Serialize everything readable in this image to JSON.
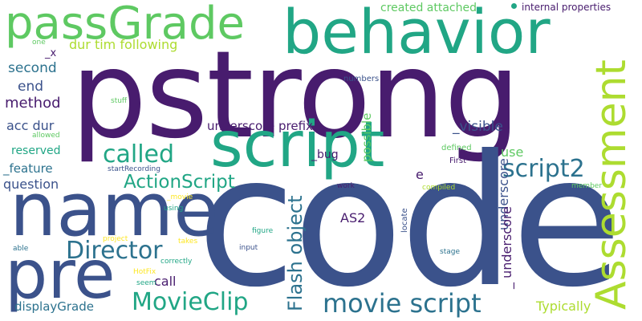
{
  "colors": {
    "darkpurple": "#481c6e",
    "blue": "#3b528b",
    "teal": "#2c728e",
    "green": "#21a685",
    "lightgreen": "#5ec962",
    "lime": "#addc30",
    "yellow": "#fde725"
  },
  "words": {
    "pstrong": "pstrong",
    "code": "code",
    "behavior": "behavior",
    "name": "name",
    "pre": "pre",
    "passGrade": "passGrade",
    "script": "script",
    "assessment": "Assessment",
    "movie_script": "movie script",
    "script2": "script2",
    "director": "Director",
    "movieclip": "MovieClip",
    "called": "called",
    "actionscript": "ActionScript",
    "flash_object": "Flash object",
    "underscore_prefix": "underscore prefix",
    "dur_tim_following": "dur tim following",
    "created_attached": "created attached",
    "internal_properties": "internal properties",
    "method": "method",
    "acc_dur": "acc dur",
    "second": "second",
    "end": "end",
    "reserved": "reserved",
    "feature": "_feature",
    "question": "question",
    "x": "_x",
    "one": "one",
    "stuff": "stuff",
    "allowed": "allowed",
    "visible": "_visible",
    "bug": "_bug",
    "possible": "possible",
    "use": "use",
    "defined": "defined",
    "first": "First",
    "e": "e",
    "numbers": "numbers",
    "startrecording": "startRecording",
    "underscore": "underscore",
    "underscore_dash": "_ underscore",
    "compiled": "compiled",
    "member": "member",
    "movie": "_movie",
    "using": "using",
    "work": "work",
    "as2": "AS2",
    "locate": "locate",
    "call": "call",
    "figure": "figure",
    "project": "project",
    "takes": "takes",
    "able": "able",
    "input": "input",
    "stage": "stage",
    "correctly": "correctly",
    "hotfix": "HotFix",
    "seem": "seem",
    "displaygrade": "displayGrade",
    "typically": "Typically"
  }
}
